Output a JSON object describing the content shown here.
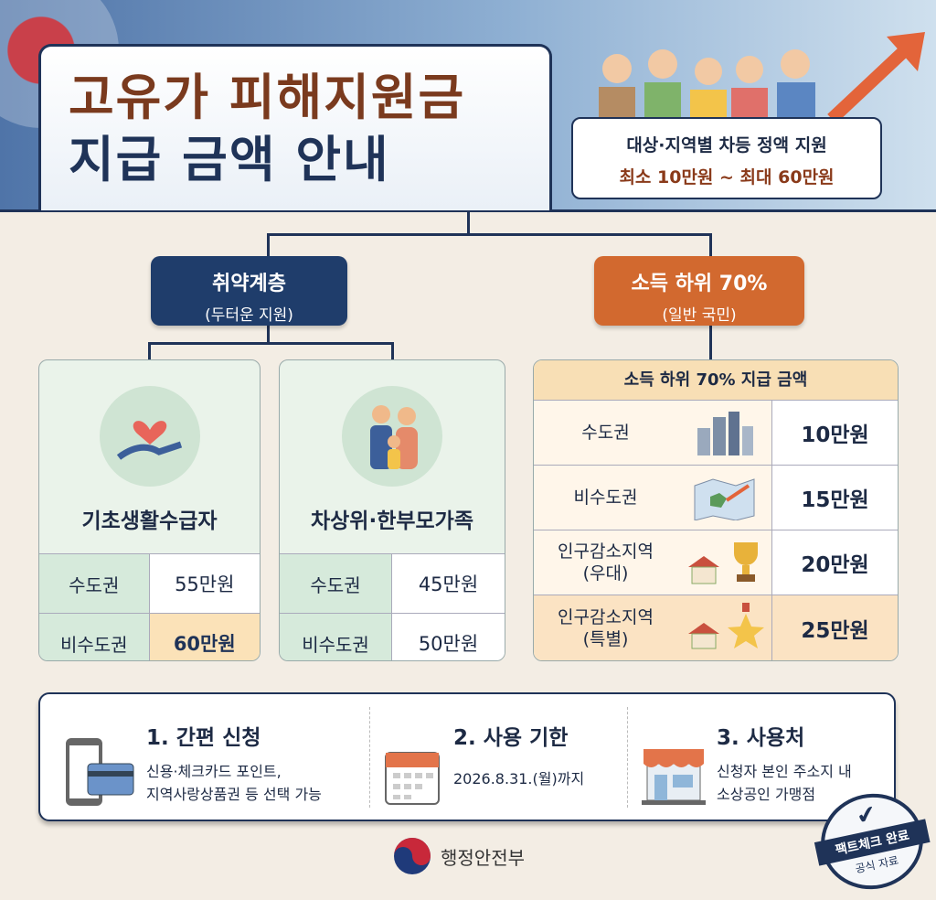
{
  "header": {
    "title_line1": "고유가 피해지원금",
    "title_line2": "지급 금액 안내",
    "subtitle_line1": "대상·지역별 차등 정액 지원",
    "subtitle_line2": "최소 10만원 ~ 최대 60만원"
  },
  "groups": {
    "vulnerable": {
      "title": "취약계층",
      "subtitle": "(두터운 지원)",
      "color": "#1f3d6b"
    },
    "general": {
      "title": "소득 하위 70%",
      "subtitle": "(일반 국민)",
      "color": "#d2692f"
    }
  },
  "cards": [
    {
      "name": "기초생활수급자",
      "icon": "heart-hand-icon",
      "rows": [
        {
          "region": "수도권",
          "amount": "55만원"
        },
        {
          "region": "비수도권",
          "amount": "60만원"
        }
      ]
    },
    {
      "name": "차상위·한부모가족",
      "icon": "family-icon",
      "rows": [
        {
          "region": "수도권",
          "amount": "45만원"
        },
        {
          "region": "비수도권",
          "amount": "50만원"
        }
      ]
    }
  ],
  "general_table": {
    "header": "소득 하위 70% 지급 금액",
    "rows": [
      {
        "region": "수도권",
        "note": "",
        "icon": "city-buildings-icon",
        "amount": "10만원"
      },
      {
        "region": "비수도권",
        "note": "",
        "icon": "map-icon",
        "amount": "15만원"
      },
      {
        "region": "인구감소지역",
        "note": "(우대)",
        "icon": "trophy-house-icon",
        "amount": "20만원"
      },
      {
        "region": "인구감소지역",
        "note": "(특별)",
        "icon": "star-medal-house-icon",
        "amount": "25만원"
      }
    ]
  },
  "steps": [
    {
      "title": "1. 간편 신청",
      "line1": "신용·체크카드 포인트,",
      "line2": "지역사랑상품권 등 선택 가능",
      "icon": "phone-card-icon"
    },
    {
      "title": "2. 사용 기한",
      "line1": "2026.8.31.(월)까지",
      "line2": "",
      "icon": "calendar-icon"
    },
    {
      "title": "3. 사용처",
      "line1": "신청자 본인 주소지 내",
      "line2": "소상공인 가맹점",
      "icon": "store-icon"
    }
  ],
  "footer": {
    "org": "행정안전부",
    "stamp_main": "팩트체크 완료",
    "stamp_sub": "공식 자료"
  },
  "colors": {
    "navy": "#1f3358",
    "orange": "#d2692f",
    "brown": "#7a3a1e",
    "highlight": "#fbe2b8"
  }
}
